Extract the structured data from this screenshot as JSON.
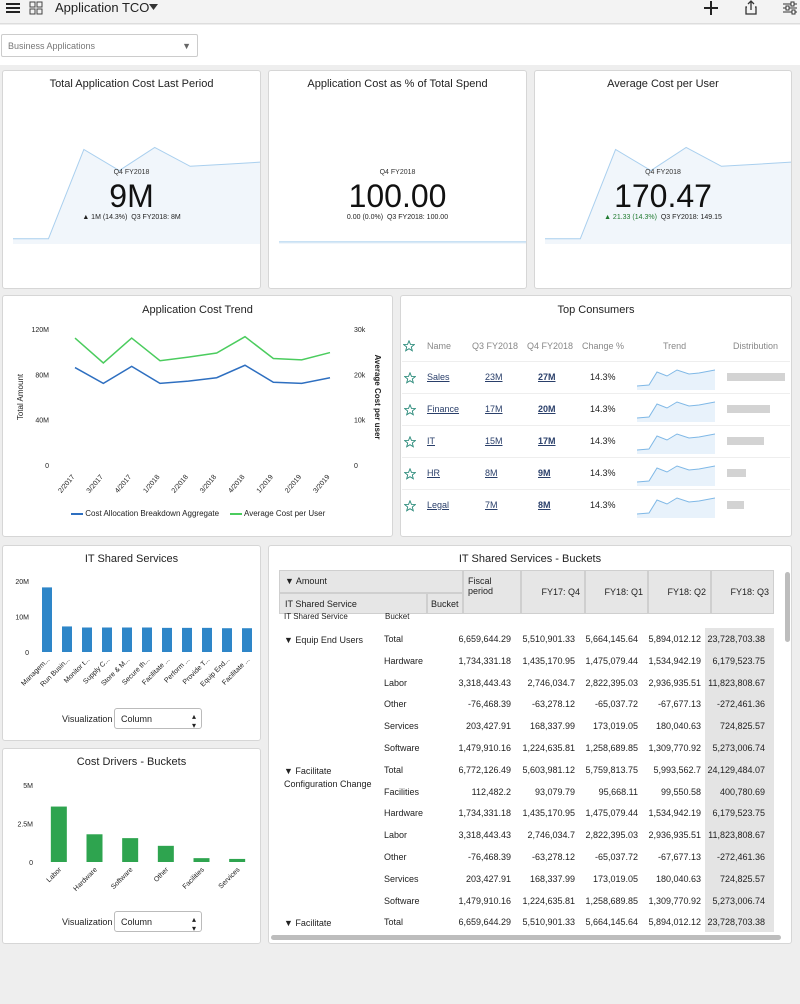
{
  "header": {
    "title": "Application TCO",
    "filter_value": "Business Applications"
  },
  "kpis": [
    {
      "title": "Total Application Cost Last Period",
      "period": "Q4 FY2018",
      "value": "9M",
      "change": "▲ 1M (14.3%)",
      "prev": "Q3 FY2018: 8M",
      "sparkline": [
        0.05,
        0.05,
        0.9,
        0.7,
        0.92,
        0.74,
        0.76,
        0.78
      ]
    },
    {
      "title": "Application Cost as % of Total Spend",
      "period": "Q4 FY2018",
      "value": "100.00",
      "change": "0.00 (0.0%)",
      "prev": "Q3 FY2018: 100.00",
      "sparkline": [
        0.02,
        0.02,
        0.02,
        0.02,
        0.02,
        0.02,
        0.02,
        0.02
      ]
    },
    {
      "title": "Average Cost per User",
      "period": "Q4 FY2018",
      "value": "170.47",
      "change": "▲ 21.33 (14.3%)",
      "prev": "Q3 FY2018: 149.15",
      "sparkline": [
        0.05,
        0.05,
        0.9,
        0.7,
        0.92,
        0.74,
        0.76,
        0.78
      ]
    }
  ],
  "trend": {
    "title": "Application Cost Trend",
    "chart_data": {
      "type": "line",
      "categories": [
        "2/2017",
        "3/2017",
        "4/2017",
        "1/2018",
        "2/2018",
        "3/2018",
        "4/2018",
        "1/2019",
        "2/2019",
        "3/2019"
      ],
      "series": [
        {
          "name": "Cost Allocation Breakdown Aggregate",
          "values": [
            86,
            72,
            87,
            72,
            74,
            77,
            88,
            73,
            72,
            77
          ],
          "color": "#2e6fc0",
          "axis": "left"
        },
        {
          "name": "Average Cost per User",
          "values": [
            28,
            22.5,
            28,
            23,
            23.8,
            24.7,
            28.3,
            23.5,
            23.2,
            24.8
          ],
          "color": "#4bcc5e",
          "axis": "right"
        }
      ],
      "ylabel": "Total Amount",
      "y2label": "Average Cost per user",
      "y_ticks": [
        "120M",
        "80M",
        "40M",
        "0"
      ],
      "y2_ticks": [
        "30k",
        "20k",
        "10k",
        "0"
      ],
      "ylim": [
        0,
        120
      ],
      "y2lim": [
        0,
        30
      ]
    }
  },
  "top_consumers": {
    "title": "Top Consumers",
    "columns": [
      "Name",
      "Q3 FY2018",
      "Q4 FY2018",
      "Change %",
      "Trend",
      "Distribution"
    ],
    "rows": [
      {
        "name": "Sales",
        "q3": "23M",
        "q4": "27M",
        "change": "14.3%",
        "dist": 1.0
      },
      {
        "name": "Finance",
        "q3": "17M",
        "q4": "20M",
        "change": "14.3%",
        "dist": 0.74
      },
      {
        "name": "IT",
        "q3": "15M",
        "q4": "17M",
        "change": "14.3%",
        "dist": 0.63
      },
      {
        "name": "HR",
        "q3": "8M",
        "q4": "9M",
        "change": "14.3%",
        "dist": 0.33
      },
      {
        "name": "Legal",
        "q3": "7M",
        "q4": "8M",
        "change": "14.3%",
        "dist": 0.3
      }
    ]
  },
  "shared_services": {
    "title": "IT Shared Services",
    "viz_label": "Visualization",
    "viz_value": "Column",
    "chart_data": {
      "type": "bar",
      "categories": [
        "Managem...",
        "Run Busin...",
        "Monitor t...",
        "Supply C...",
        "Store & M...",
        "Secure th...",
        "Facilitate ...",
        "Perform ...",
        "Provide T...",
        "Equip End...",
        "Facilitate ..."
      ],
      "values": [
        18.2,
        7.2,
        6.9,
        6.9,
        6.9,
        6.9,
        6.8,
        6.8,
        6.8,
        6.7,
        6.7
      ],
      "y_ticks": [
        "20M",
        "10M",
        "0"
      ],
      "ylim": [
        0,
        20
      ],
      "color": "#2e86c8"
    }
  },
  "cost_drivers": {
    "title": "Cost Drivers - Buckets",
    "viz_label": "Visualization",
    "viz_value": "Column",
    "chart_data": {
      "type": "bar",
      "categories": [
        "Labor",
        "Hardware",
        "Software",
        "Other",
        "Facilities",
        "Services"
      ],
      "values": [
        3.6,
        1.8,
        1.55,
        1.05,
        0.25,
        0.2
      ],
      "y_ticks": [
        "5M",
        "2.5M",
        "0"
      ],
      "ylim": [
        0,
        5
      ],
      "color": "#2ea44f"
    }
  },
  "buckets": {
    "title": "IT Shared Services - Buckets",
    "head_amount": "▼ Amount",
    "head_fiscal": "Fiscal period",
    "head_service": "IT Shared Service",
    "head_bucket": "Bucket",
    "head_service2": "IT Shared Service",
    "head_bucket2": "Bucket",
    "periods": [
      "FY17: Q4",
      "FY18: Q1",
      "FY18: Q2",
      "FY18: Q3"
    ],
    "groups": [
      {
        "name": "▼ Equip End Users",
        "rows": [
          {
            "bucket": "Total",
            "vals": [
              "6,659,644.29",
              "5,510,901.33",
              "5,664,145.64",
              "5,894,012.12",
              "23,728,703.38"
            ]
          },
          {
            "bucket": "Hardware",
            "vals": [
              "1,734,331.18",
              "1,435,170.95",
              "1,475,079.44",
              "1,534,942.19",
              "6,179,523.75"
            ]
          },
          {
            "bucket": "Labor",
            "vals": [
              "3,318,443.43",
              "2,746,034.7",
              "2,822,395.03",
              "2,936,935.51",
              "11,823,808.67"
            ]
          },
          {
            "bucket": "Other",
            "vals": [
              "-76,468.39",
              "-63,278.12",
              "-65,037.72",
              "-67,677.13",
              "-272,461.36"
            ]
          },
          {
            "bucket": "Services",
            "vals": [
              "203,427.91",
              "168,337.99",
              "173,019.05",
              "180,040.63",
              "724,825.57"
            ]
          },
          {
            "bucket": "Software",
            "vals": [
              "1,479,910.16",
              "1,224,635.81",
              "1,258,689.85",
              "1,309,770.92",
              "5,273,006.74"
            ]
          }
        ]
      },
      {
        "name": "▼ Facilitate Configuration Change",
        "rows": [
          {
            "bucket": "Total",
            "vals": [
              "6,772,126.49",
              "5,603,981.12",
              "5,759,813.75",
              "5,993,562.7",
              "24,129,484.07"
            ]
          },
          {
            "bucket": "Facilities",
            "vals": [
              "112,482.2",
              "93,079.79",
              "95,668.11",
              "99,550.58",
              "400,780.69"
            ]
          },
          {
            "bucket": "Hardware",
            "vals": [
              "1,734,331.18",
              "1,435,170.95",
              "1,475,079.44",
              "1,534,942.19",
              "6,179,523.75"
            ]
          },
          {
            "bucket": "Labor",
            "vals": [
              "3,318,443.43",
              "2,746,034.7",
              "2,822,395.03",
              "2,936,935.51",
              "11,823,808.67"
            ]
          },
          {
            "bucket": "Other",
            "vals": [
              "-76,468.39",
              "-63,278.12",
              "-65,037.72",
              "-67,677.13",
              "-272,461.36"
            ]
          },
          {
            "bucket": "Services",
            "vals": [
              "203,427.91",
              "168,337.99",
              "173,019.05",
              "180,040.63",
              "724,825.57"
            ]
          },
          {
            "bucket": "Software",
            "vals": [
              "1,479,910.16",
              "1,224,635.81",
              "1,258,689.85",
              "1,309,770.92",
              "5,273,006.74"
            ]
          }
        ]
      },
      {
        "name": "▼ Facilitate",
        "rows": [
          {
            "bucket": "Total",
            "vals": [
              "6,659,644.29",
              "5,510,901.33",
              "5,664,145.64",
              "5,894,012.12",
              "23,728,703.38"
            ]
          }
        ]
      }
    ]
  }
}
